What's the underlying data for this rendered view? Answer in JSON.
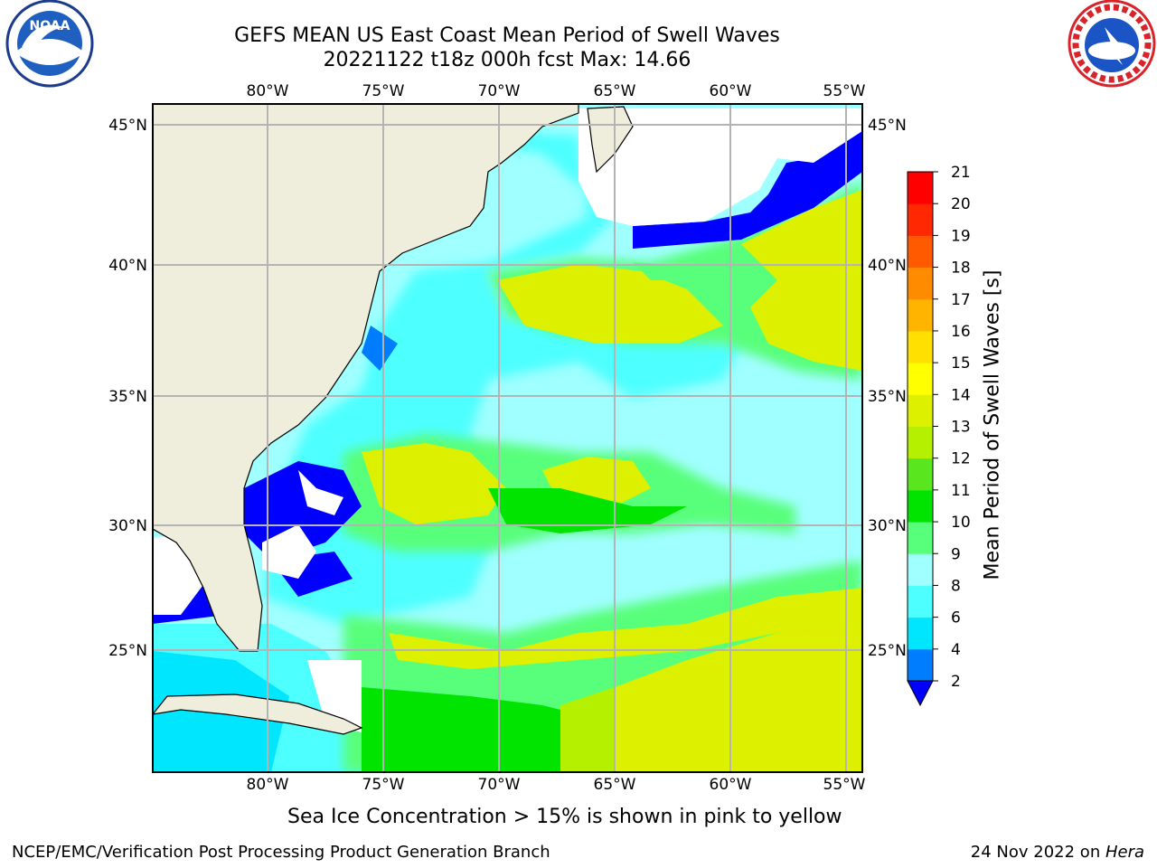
{
  "header": {
    "title": "GEFS MEAN US East Coast Mean Period of Swell Waves",
    "subtitle": "20221122 t18z 000h fcst   Max: 14.66"
  },
  "logos": {
    "left": "NOAA",
    "right": "NATIONAL WEATHER SERVICE"
  },
  "map": {
    "lon_ticks": [
      "80°W",
      "75°W",
      "70°W",
      "65°W",
      "60°W",
      "55°W"
    ],
    "lat_ticks": [
      "45°N",
      "40°N",
      "35°N",
      "30°N",
      "25°N"
    ],
    "land_color": "#efeedc",
    "grid_color": "#b4b4b4"
  },
  "colorbar": {
    "label": "Mean Period of Swell Waves [s]",
    "ticks": [
      "2",
      "4",
      "6",
      "8",
      "9",
      "10",
      "11",
      "12",
      "13",
      "14",
      "15",
      "16",
      "17",
      "18",
      "19",
      "20",
      "21"
    ],
    "colors": [
      "#0000ff",
      "#007dff",
      "#00e6ff",
      "#4dffff",
      "#a0ffff",
      "#58ff7a",
      "#00e400",
      "#5ae61e",
      "#b4f000",
      "#dcf000",
      "#ffff00",
      "#ffe000",
      "#ffb400",
      "#ff8c00",
      "#ff5a00",
      "#ff2800",
      "#ff0000"
    ]
  },
  "note": "Sea Ice Concentration > 15% is shown in pink to yellow",
  "footer": {
    "left": "NCEP/EMC/Verification Post Processing Product Generation Branch",
    "date": "24 Nov 2022 on ",
    "host": "Hera"
  }
}
